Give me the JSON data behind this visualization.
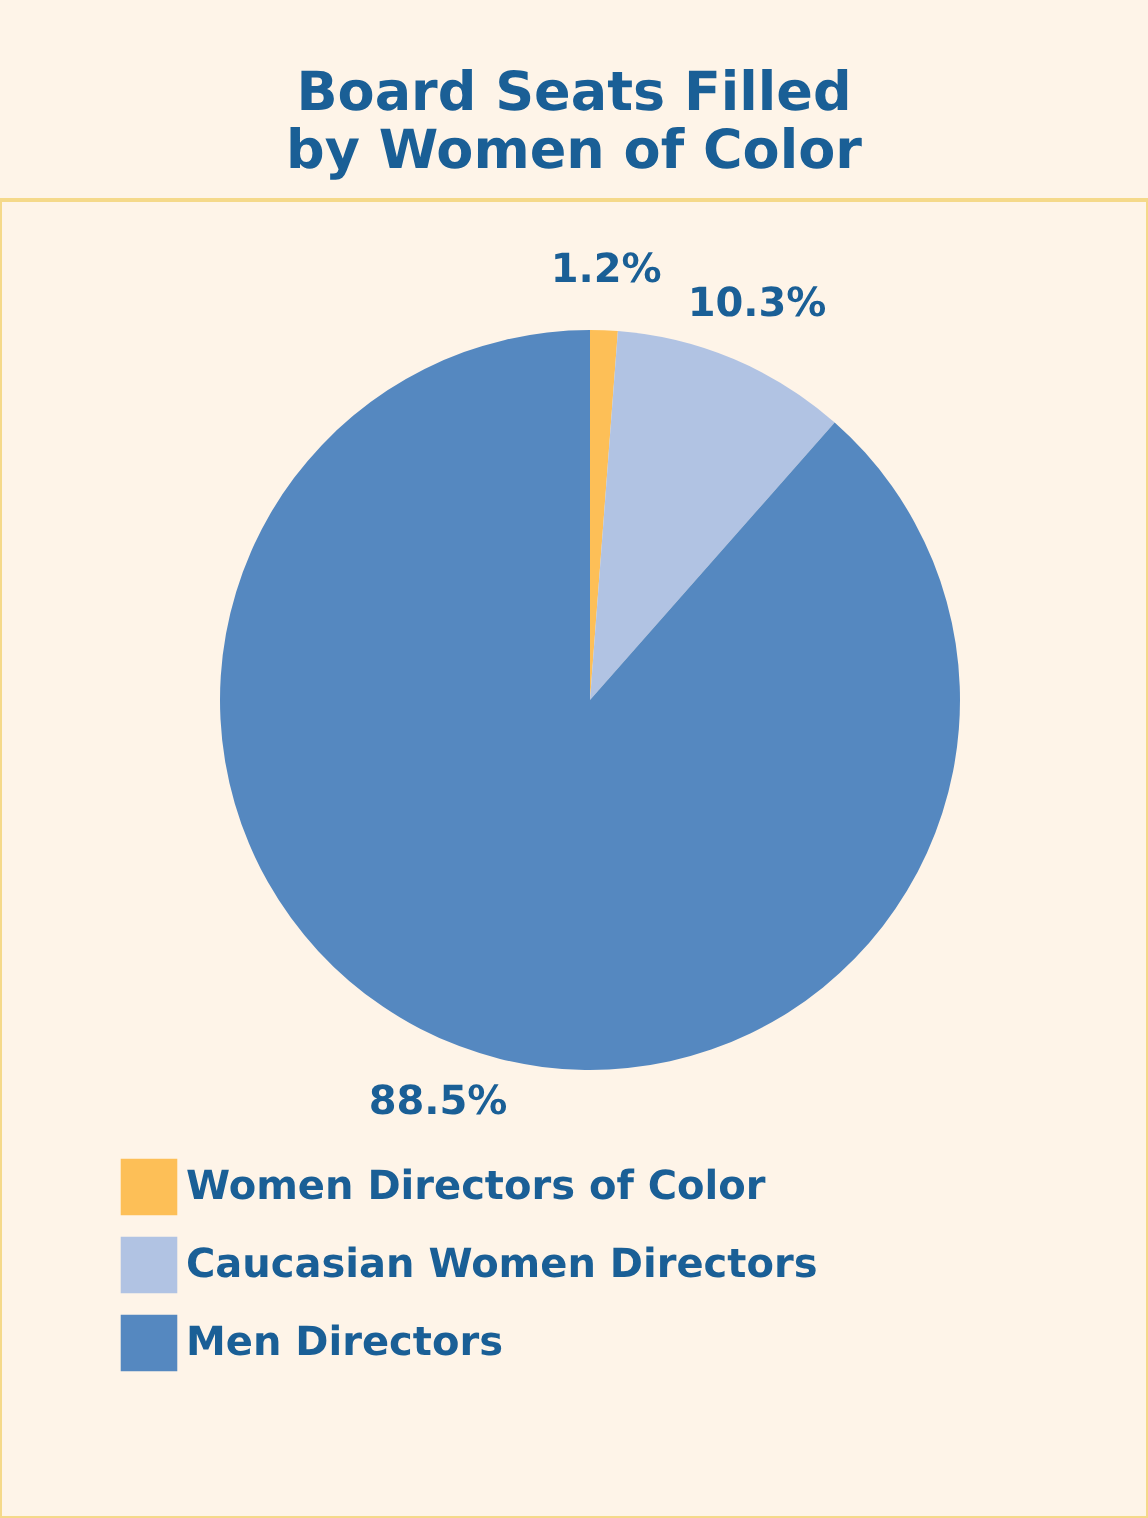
{
  "chart_data": {
    "type": "pie",
    "title": "Board Seats Filled\nby Women of Color",
    "categories": [
      "Women Directors of Color",
      "Caucasian Women Directors",
      "Men Directors"
    ],
    "values": [
      1.2,
      10.3,
      88.5
    ],
    "colors": [
      "#fdbf57",
      "#b1c3e3",
      "#5588c0"
    ],
    "value_labels": [
      "1.2%",
      "10.3%",
      "88.5%"
    ],
    "legend": "bottom left"
  }
}
